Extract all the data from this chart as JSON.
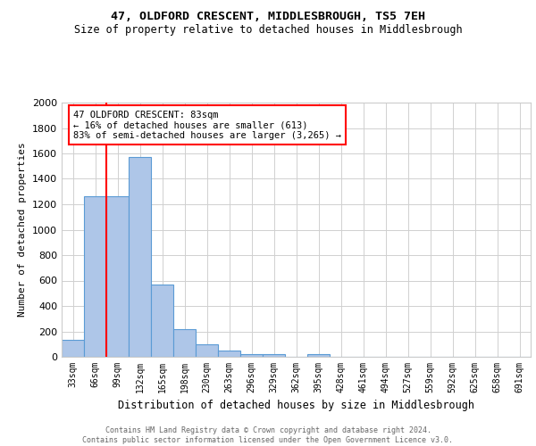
{
  "title": "47, OLDFORD CRESCENT, MIDDLESBROUGH, TS5 7EH",
  "subtitle": "Size of property relative to detached houses in Middlesbrough",
  "xlabel": "Distribution of detached houses by size in Middlesbrough",
  "ylabel": "Number of detached properties",
  "bar_labels": [
    "33sqm",
    "66sqm",
    "99sqm",
    "132sqm",
    "165sqm",
    "198sqm",
    "230sqm",
    "263sqm",
    "296sqm",
    "329sqm",
    "362sqm",
    "395sqm",
    "428sqm",
    "461sqm",
    "494sqm",
    "527sqm",
    "559sqm",
    "592sqm",
    "625sqm",
    "658sqm",
    "691sqm"
  ],
  "bar_values": [
    130,
    1265,
    1265,
    1570,
    565,
    215,
    100,
    50,
    20,
    20,
    0,
    20,
    0,
    0,
    0,
    0,
    0,
    0,
    0,
    0,
    0
  ],
  "bar_color": "#aec6e8",
  "bar_edge_color": "#5b9bd5",
  "ylim": [
    0,
    2000
  ],
  "yticks": [
    0,
    200,
    400,
    600,
    800,
    1000,
    1200,
    1400,
    1600,
    1800,
    2000
  ],
  "red_line_x": 1.5,
  "annotation_text": "47 OLDFORD CRESCENT: 83sqm\n← 16% of detached houses are smaller (613)\n83% of semi-detached houses are larger (3,265) →",
  "footer_text": "Contains HM Land Registry data © Crown copyright and database right 2024.\nContains public sector information licensed under the Open Government Licence v3.0.",
  "title_fontsize": 9.5,
  "subtitle_fontsize": 8.5,
  "xlabel_fontsize": 8.5,
  "ylabel_fontsize": 8,
  "tick_fontsize": 7,
  "annotation_fontsize": 7.5,
  "footer_fontsize": 6
}
